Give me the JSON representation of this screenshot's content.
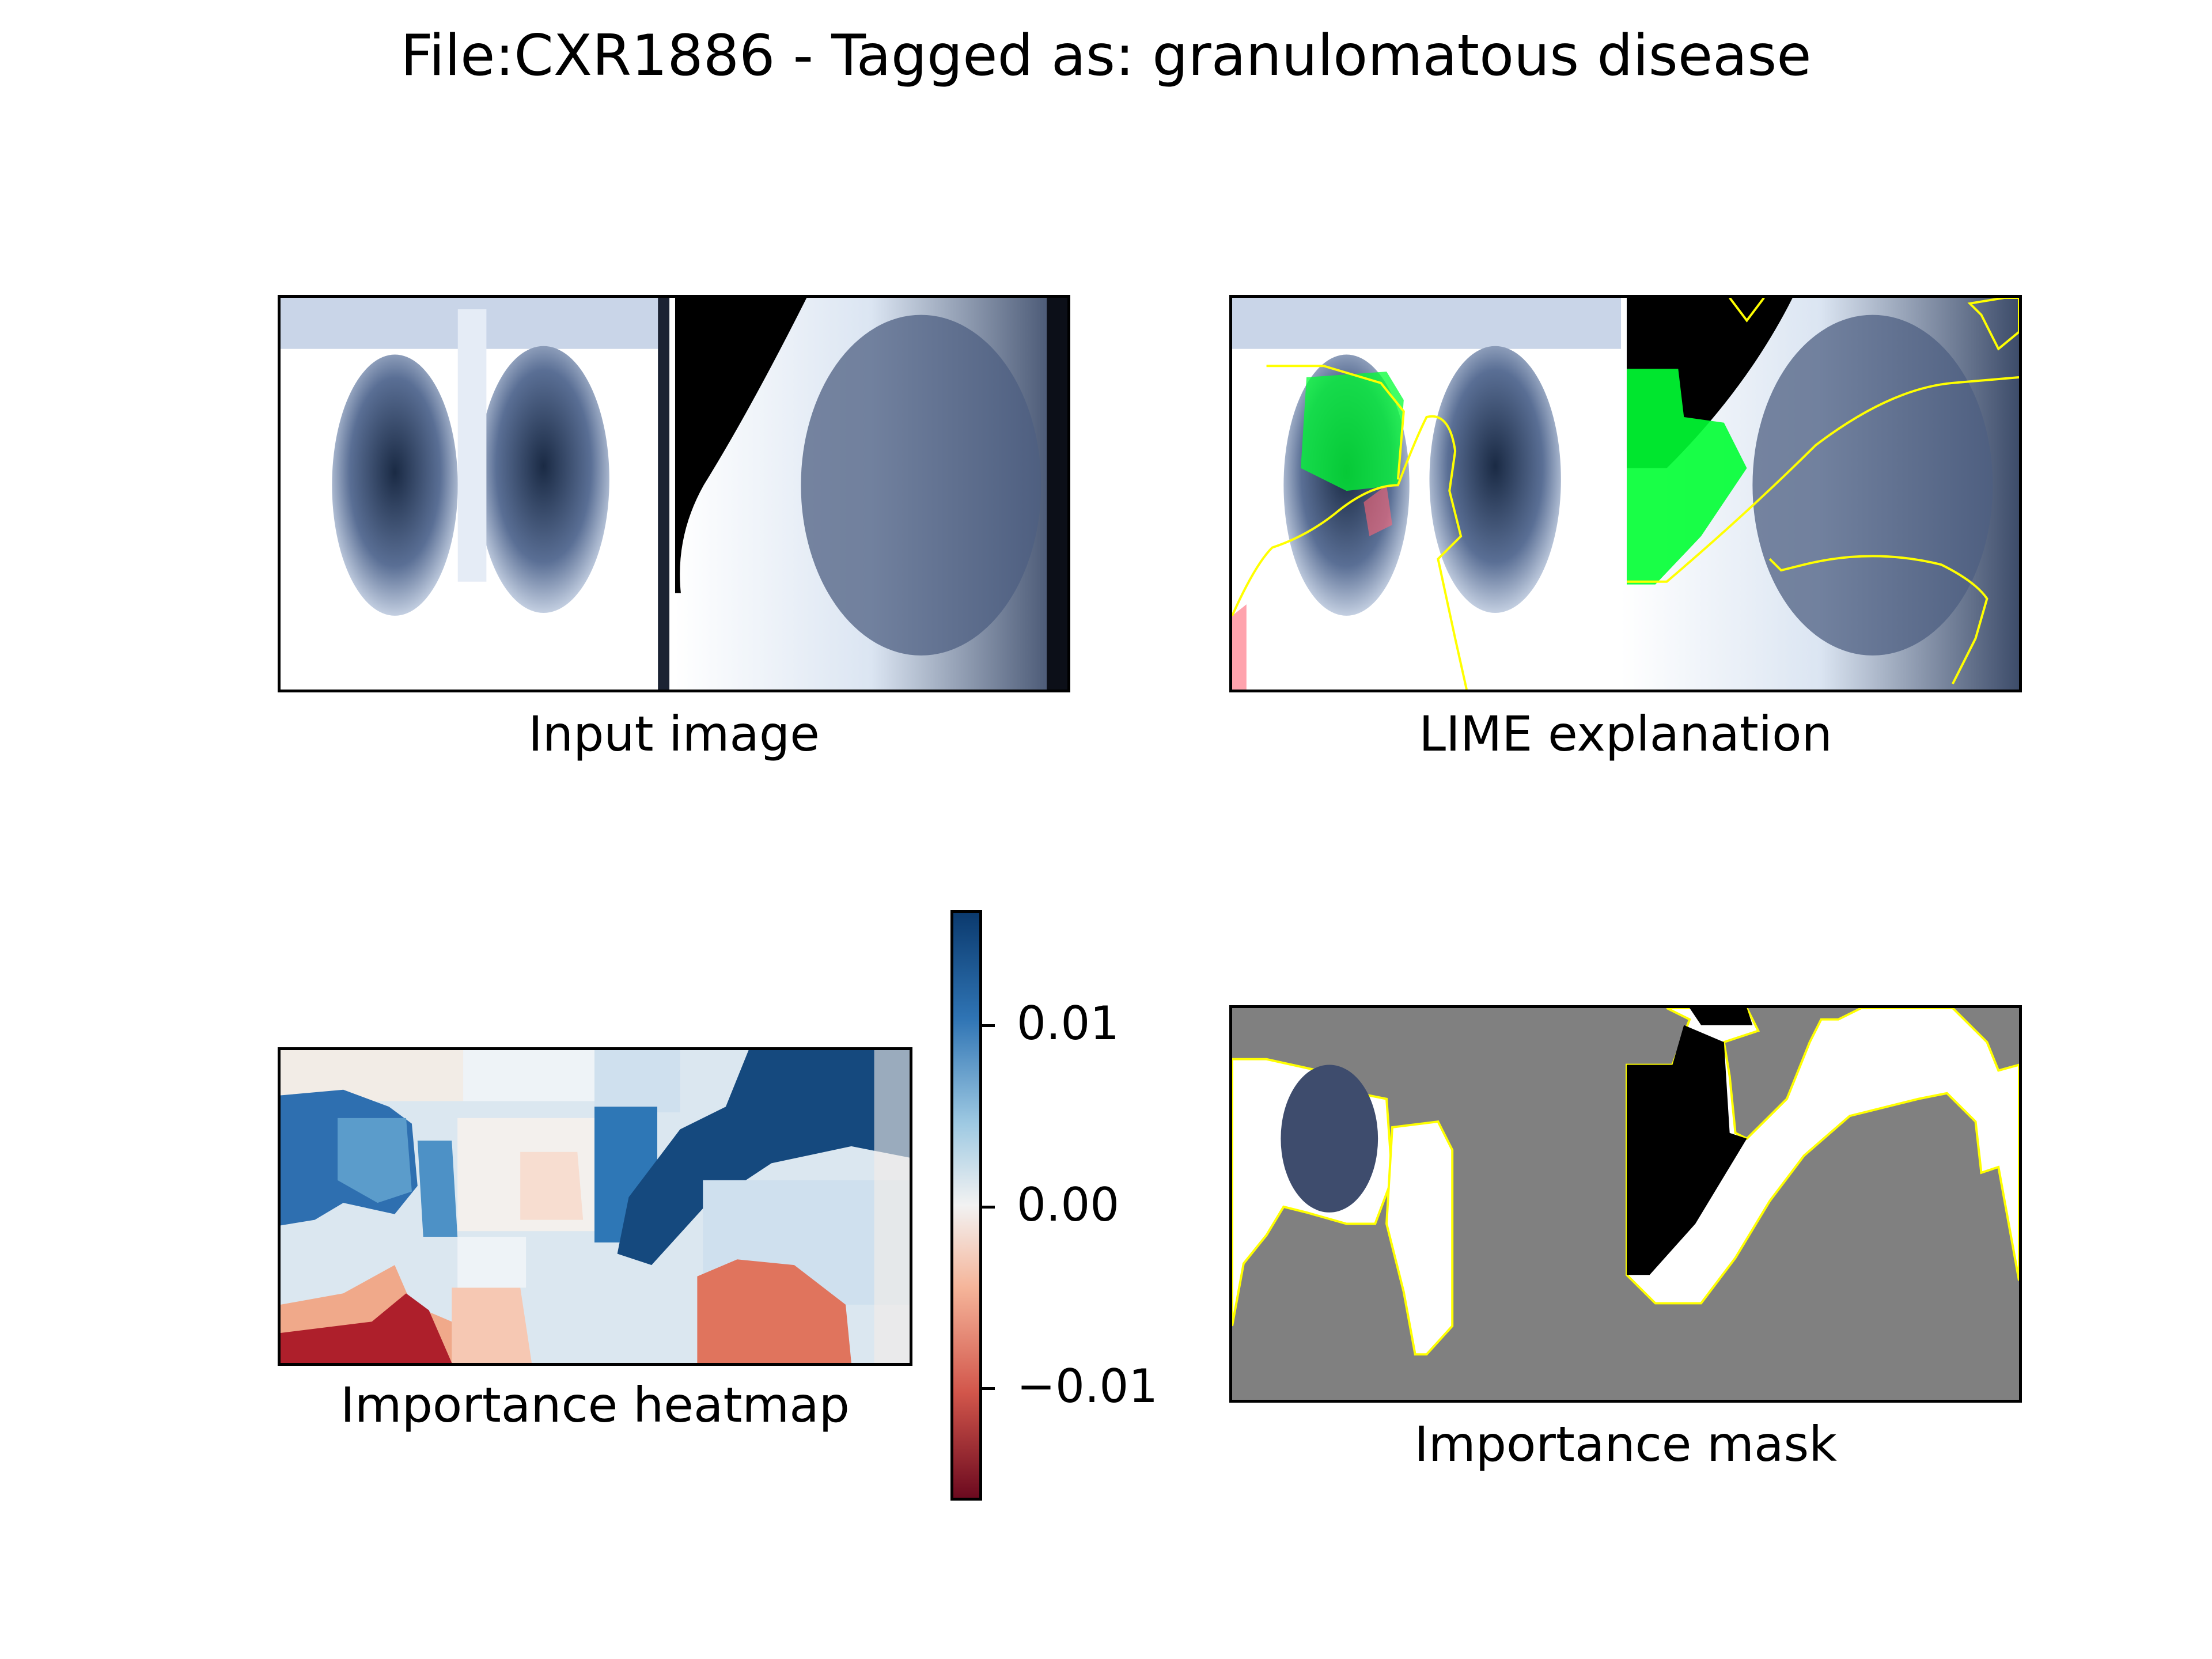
{
  "figure": {
    "title": "File:CXR1886 - Tagged as: granulomatous disease"
  },
  "panels": {
    "input_image": {
      "caption": "Input image"
    },
    "lime_explanation": {
      "caption": "LIME explanation"
    },
    "importance_heatmap": {
      "caption": "Importance heatmap"
    },
    "importance_mask": {
      "caption": "Importance mask"
    }
  },
  "colorbar": {
    "ticks": [
      "0.01",
      "0.00",
      "−0.01"
    ],
    "colormap": "RdBu"
  },
  "colors": {
    "positive": "#0b3a6e",
    "negative": "#6c0a1f",
    "highlight_green": "#00ff33",
    "highlight_red": "#ff6677",
    "boundary_yellow": "#ffff00",
    "mask_gray": "#808080"
  }
}
